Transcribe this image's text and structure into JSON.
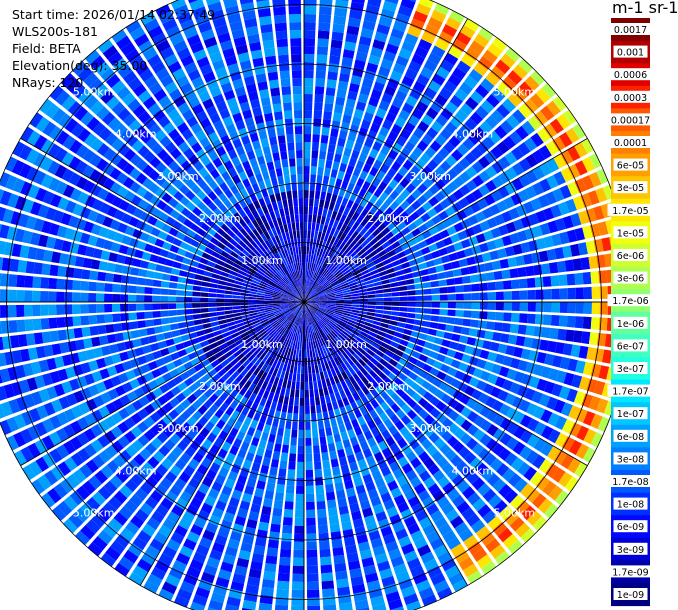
{
  "info": {
    "start_time": "Start time: 2026/01/14 02:37:49",
    "instrument": "WLS200s-181",
    "field": "Field: BETA",
    "elevation": "Elevation(deg): 35.00",
    "nrays": "NRays: 120"
  },
  "colorbar": {
    "title": "m-1 sr-1",
    "labels": [
      "0.0017",
      "0.001",
      "0.0006",
      "0.0003",
      "0.00017",
      "0.0001",
      "6e-05",
      "3e-05",
      "1.7e-05",
      "1e-05",
      "6e-06",
      "3e-06",
      "1.7e-06",
      "1e-06",
      "6e-07",
      "3e-07",
      "1.7e-07",
      "1e-07",
      "6e-08",
      "3e-08",
      "1.7e-08",
      "1e-08",
      "6e-09",
      "3e-09",
      "1.7e-09",
      "1e-09"
    ],
    "colors": [
      "#800000",
      "#b00000",
      "#e00000",
      "#ff2000",
      "#ff5a00",
      "#ff8000",
      "#ffa000",
      "#ffc400",
      "#ffe600",
      "#f0ff10",
      "#d0ff30",
      "#b0ff50",
      "#90ff70",
      "#60ffa0",
      "#40ffc0",
      "#20ffe0",
      "#00e8ff",
      "#00c8ff",
      "#00a0ff",
      "#0080ff",
      "#0058ff",
      "#0030ff",
      "#0008ff",
      "#0000d8",
      "#0000a8",
      "#000080"
    ]
  },
  "chart_data": {
    "type": "ppi_polar",
    "field": "BETA",
    "units": "m-1 sr-1",
    "nrays": 120,
    "elevation_deg": 35.0,
    "range_rings_km": [
      1.0,
      2.0,
      3.0,
      4.0,
      5.0
    ],
    "range_ring_labels": [
      "1.00km",
      "2.00km",
      "3.00km",
      "4.00km",
      "5.00km"
    ],
    "max_range_km": 5.5,
    "scale": "log",
    "vmin": 1e-09,
    "vmax": 0.0017,
    "background_beta": 3e-08,
    "cloud_arc": {
      "azimuth_start_deg": 20,
      "azimuth_end_deg": 150,
      "range_km": 5.2,
      "beta_peak": 0.0003
    }
  }
}
